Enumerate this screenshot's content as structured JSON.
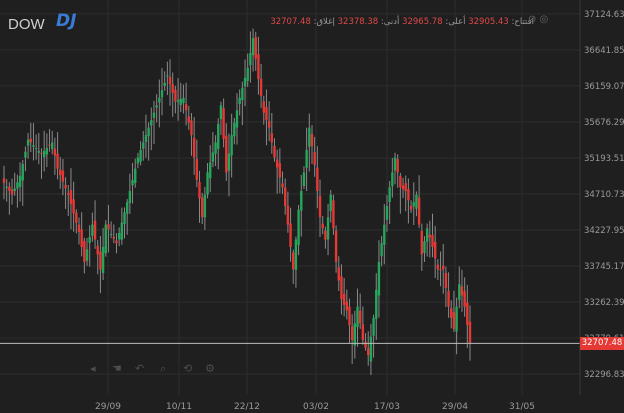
{
  "symbol": "DOW",
  "logo": "DJ",
  "ohlc": {
    "open_label": "افتتاح:",
    "open": "32905.43",
    "high_label": "أعلى:",
    "high": "32965.78",
    "low_label": "أدنى:",
    "low": "32378.38",
    "close_label": "إغلاق:",
    "close": "32707.48"
  },
  "last_price": "32707.48",
  "toolbar": [
    "back-icon",
    "pan-icon",
    "undo-icon",
    "zoom-icon",
    "reset-icon",
    "settings-icon"
  ],
  "colors": {
    "background": "#1f1f1f",
    "up": "#26a65b",
    "down": "#e53935",
    "grid": "#2c2c2c",
    "text": "#9a9a9a"
  },
  "chart_data": {
    "type": "candlestick",
    "y_ticks": [
      "37124.63",
      "36641.85",
      "36159.07",
      "35676.29",
      "35193.51",
      "34710.73",
      "34227.95",
      "33745.17",
      "33262.39",
      "32779.61",
      "32296.83"
    ],
    "x_ticks": [
      "29/09",
      "10/11",
      "22/12",
      "03/02",
      "17/03",
      "29/04",
      "31/05"
    ],
    "ylim": [
      32150,
      37150
    ],
    "last_close": 32707.48,
    "anchors": [
      [
        0,
        34860
      ],
      [
        3,
        34700
      ],
      [
        6,
        34950
      ],
      [
        9,
        35440
      ],
      [
        14,
        35250
      ],
      [
        18,
        35400
      ],
      [
        20,
        35050
      ],
      [
        24,
        34700
      ],
      [
        28,
        34200
      ],
      [
        30,
        33800
      ],
      [
        33,
        34300
      ],
      [
        36,
        33700
      ],
      [
        38,
        34300
      ],
      [
        42,
        34050
      ],
      [
        46,
        34600
      ],
      [
        50,
        35200
      ],
      [
        54,
        35600
      ],
      [
        58,
        36000
      ],
      [
        61,
        36300
      ],
      [
        64,
        35950
      ],
      [
        67,
        36000
      ],
      [
        70,
        35500
      ],
      [
        72,
        34900
      ],
      [
        74,
        34400
      ],
      [
        76,
        35000
      ],
      [
        79,
        35400
      ],
      [
        81,
        35900
      ],
      [
        83,
        35000
      ],
      [
        85,
        35500
      ],
      [
        88,
        36000
      ],
      [
        91,
        36400
      ],
      [
        93,
        36800
      ],
      [
        95,
        36250
      ],
      [
        97,
        35800
      ],
      [
        99,
        35600
      ],
      [
        101,
        35200
      ],
      [
        104,
        34800
      ],
      [
        106,
        34300
      ],
      [
        108,
        33700
      ],
      [
        110,
        34500
      ],
      [
        112,
        35000
      ],
      [
        114,
        35600
      ],
      [
        116,
        35100
      ],
      [
        118,
        34400
      ],
      [
        120,
        34100
      ],
      [
        122,
        34700
      ],
      [
        124,
        33800
      ],
      [
        126,
        33300
      ],
      [
        128,
        33150
      ],
      [
        130,
        32750
      ],
      [
        132,
        33200
      ],
      [
        134,
        32750
      ],
      [
        136,
        32550
      ],
      [
        138,
        33050
      ],
      [
        140,
        33800
      ],
      [
        142,
        34300
      ],
      [
        144,
        34800
      ],
      [
        146,
        35200
      ],
      [
        148,
        34800
      ],
      [
        150,
        34750
      ],
      [
        152,
        34500
      ],
      [
        154,
        34700
      ],
      [
        156,
        33900
      ],
      [
        158,
        34250
      ],
      [
        160,
        34000
      ],
      [
        162,
        33700
      ],
      [
        164,
        33700
      ],
      [
        166,
        33200
      ],
      [
        168,
        32900
      ],
      [
        170,
        33500
      ],
      [
        172,
        33200
      ],
      [
        174,
        32707.48
      ]
    ]
  }
}
